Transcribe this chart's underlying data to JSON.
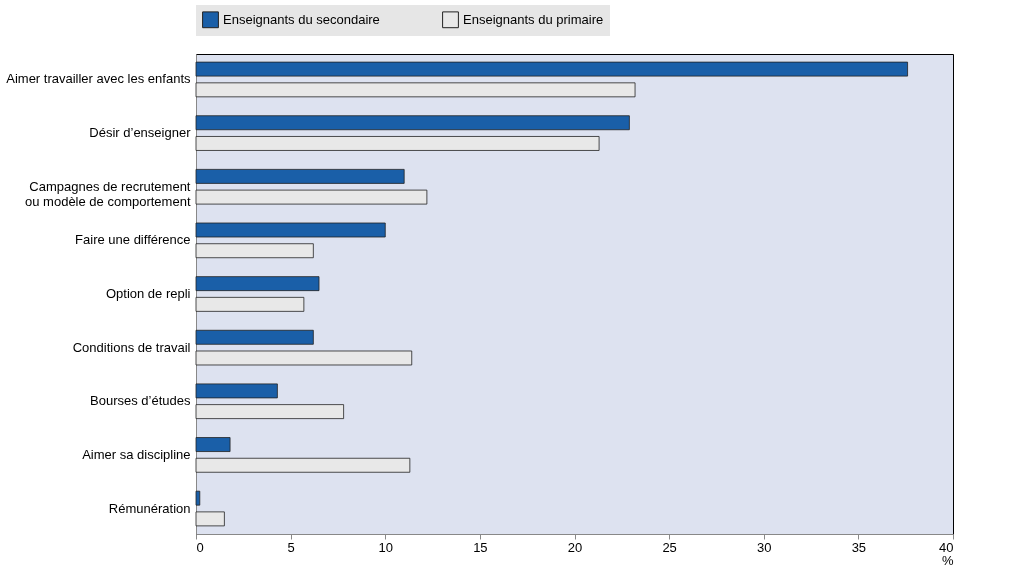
{
  "chart_data": {
    "type": "bar",
    "orientation": "horizontal",
    "xlabel": "%",
    "categories": [
      "Aimer travailler avec les enfants",
      "Désir d’enseigner",
      "Campagnes de recrutement\nou modèle de comportement",
      "Faire une différence",
      "Option de repli",
      "Conditions de travail",
      "Bourses d’études",
      "Aimer sa discipline",
      "Rémunération"
    ],
    "series": [
      {
        "name": "Enseignants du secondaire",
        "color": "#1a5fa8",
        "values": [
          37.6,
          22.9,
          11.0,
          10.0,
          6.5,
          6.2,
          4.3,
          1.8,
          0.2
        ]
      },
      {
        "name": "Enseignants du primaire",
        "color": "#e8e8e8",
        "values": [
          23.2,
          21.3,
          12.2,
          6.2,
          5.7,
          11.4,
          7.8,
          11.3,
          1.5
        ]
      }
    ],
    "xlim": [
      0,
      40
    ],
    "xticks": [
      0,
      5,
      10,
      15,
      20,
      25,
      30,
      35,
      40
    ],
    "grid": false,
    "legend": "top"
  }
}
